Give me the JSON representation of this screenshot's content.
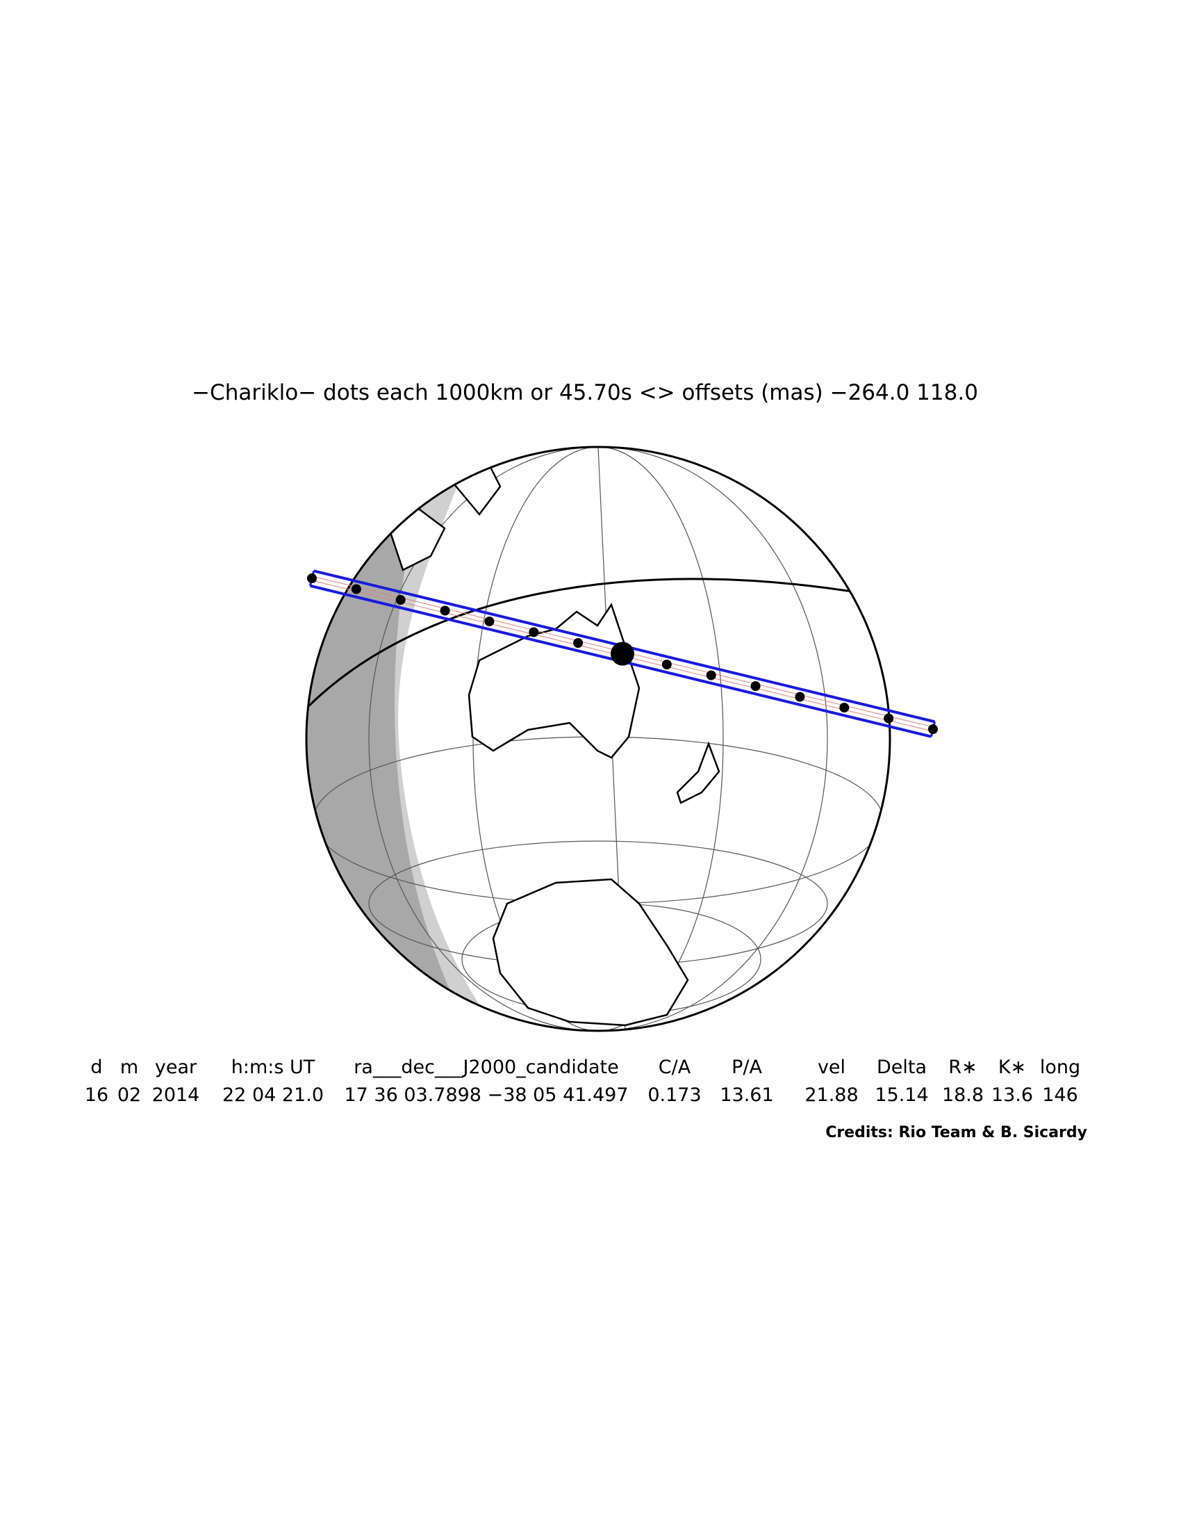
{
  "title": "−Chariklo− dots each 1000km or 45.70s <> offsets (mas) −264.0  118.0",
  "table": {
    "headers": [
      "d",
      "m",
      "year",
      "h:m:s UT",
      "ra___dec___J2000_candidate",
      "C/A",
      "P/A",
      "vel",
      "Delta",
      "R∗",
      "K∗",
      "long"
    ],
    "rows": [
      [
        "16",
        "02",
        "2014",
        "22 04 21.0",
        "17 36 03.7898 −38 05 41.497",
        "0.173",
        "13.61",
        "21.88",
        "15.14",
        "18.8",
        "13.6",
        "146"
      ]
    ]
  },
  "credits": "Credits: Rio Team & B. Sicardy"
}
